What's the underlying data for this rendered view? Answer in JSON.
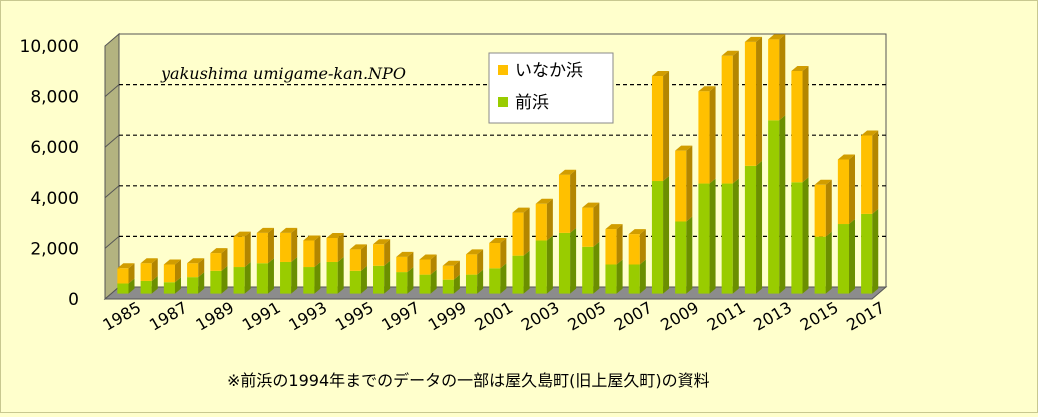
{
  "chart_data": {
    "type": "bar",
    "stacked": true,
    "annotation": "yakushima umigame-kan.NPO",
    "footnote": "※前浜の1994年までのデータの一部は屋久島町(旧上屋久町)の資料",
    "x": [
      1985,
      1986,
      1987,
      1988,
      1989,
      1990,
      1991,
      1992,
      1993,
      1994,
      1995,
      1996,
      1997,
      1998,
      1999,
      2000,
      2001,
      2002,
      2003,
      2004,
      2005,
      2006,
      2007,
      2008,
      2009,
      2010,
      2011,
      2012,
      2013,
      2014,
      2015,
      2016,
      2017
    ],
    "x_tick_labels": [
      "1985",
      "1987",
      "1989",
      "1991",
      "1993",
      "1995",
      "1997",
      "1999",
      "2001",
      "2003",
      "2005",
      "2007",
      "2009",
      "2011",
      "2013",
      "2015",
      "2017"
    ],
    "y_tick_labels": [
      "0",
      "2,000",
      "4,000",
      "6,000",
      "8,000",
      "10,000"
    ],
    "ylim": [
      0,
      10000
    ],
    "series": [
      {
        "name": "前浜",
        "color": "#99cc00",
        "values": [
          400,
          500,
          450,
          650,
          900,
          1050,
          1200,
          1250,
          1050,
          1250,
          900,
          1100,
          850,
          750,
          550,
          750,
          1000,
          1500,
          2100,
          2400,
          1850,
          1150,
          1150,
          4450,
          2850,
          4350,
          4350,
          5050,
          6850,
          4400,
          2250,
          2750,
          3150
        ]
      },
      {
        "name": "いなか浜",
        "color": "#ffc000",
        "values": [
          600,
          700,
          700,
          550,
          700,
          1200,
          1200,
          1150,
          1050,
          950,
          850,
          850,
          600,
          600,
          550,
          800,
          1000,
          1700,
          1450,
          2300,
          1550,
          1400,
          1200,
          4150,
          2800,
          3650,
          5050,
          4900,
          3200,
          4400,
          2050,
          2550,
          3100
        ]
      }
    ],
    "legend_position": "top-center",
    "grid": true
  }
}
